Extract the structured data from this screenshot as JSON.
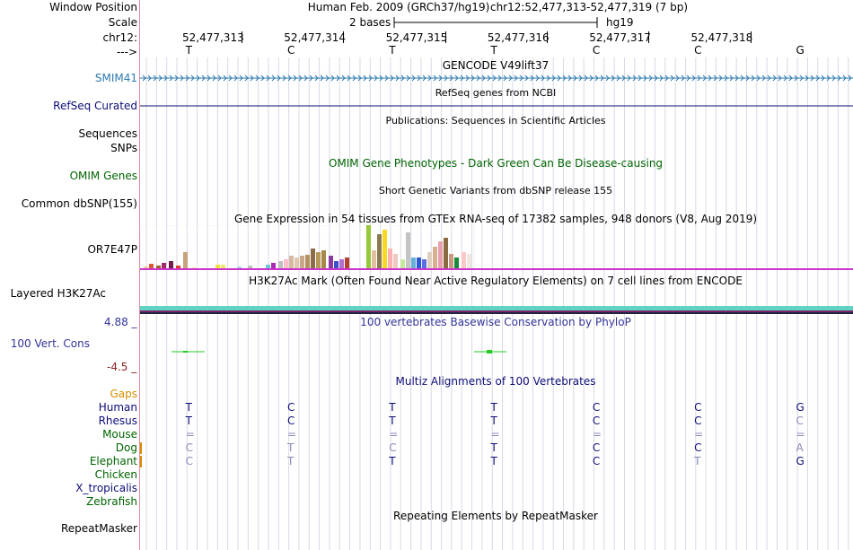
{
  "header": {
    "window_position_label": "Window Position",
    "scale_label": "Scale",
    "chr_label": "chr12:",
    "strand_label": "--->",
    "assembly_text": "Human Feb. 2009 (GRCh37/hg19)",
    "position_text": "chr12:52,477,313-52,477,319 (7 bp)",
    "scale_text": "2 bases",
    "scale_db": "hg19",
    "coords": [
      "52,477,313",
      "52,477,314",
      "52,477,315",
      "52,477,316",
      "52,477,317",
      "52,477,318"
    ],
    "bases": [
      "T",
      "C",
      "T",
      "T",
      "C",
      "C",
      "G"
    ]
  },
  "tracks": {
    "gencode": {
      "title": "GENCODE V49lift37",
      "label": "SMIM41",
      "color": "#2d7bb0"
    },
    "refseq": {
      "title": "RefSeq genes from NCBI",
      "label": "RefSeq Curated",
      "color": "#0c0c78"
    },
    "publications": {
      "title": "Publications: Sequences in Scientific Articles",
      "label1": "Sequences",
      "label2": "SNPs"
    },
    "omim": {
      "title": "OMIM Gene Phenotypes - Dark Green Can Be Disease-causing",
      "label": "OMIM Genes",
      "color": "#006400"
    },
    "dbsnp": {
      "title": "Short Genetic Variants from dbSNP release 155",
      "label": "Common dbSNP(155)"
    },
    "gtex": {
      "title": "Gene Expression in 54 tissues from GTEx RNA-seq of 17382 samples, 948 donors (V8, Aug 2019)",
      "label": "OR7E47P"
    },
    "h3k27ac": {
      "title": "H3K27Ac Mark (Often Found Near Active Regulatory Elements) on 7 cell lines from ENCODE",
      "label": "Layered H3K27Ac"
    },
    "phylop": {
      "title": "100 vertebrates Basewise Conservation by PhyloP",
      "label": "100 Vert. Cons",
      "max": "4.88 _",
      "min": "-4.5 _",
      "color": "#333399",
      "min_color": "#8a2020"
    },
    "multiz": {
      "title": "Multiz Alignments of 100 Vertebrates",
      "gaps_label": "Gaps",
      "gaps_color": "#d98c00"
    },
    "repeatmasker": {
      "title": "Repeating Elements by RepeatMasker",
      "label": "RepeatMasker"
    }
  },
  "species": [
    {
      "name": "Human",
      "color": "#0c0c78",
      "bases": [
        "T",
        "C",
        "T",
        "T",
        "C",
        "C",
        "G"
      ],
      "faint": [
        false,
        false,
        false,
        false,
        false,
        false,
        false
      ]
    },
    {
      "name": "Rhesus",
      "color": "#0c0c78",
      "bases": [
        "T",
        "C",
        "T",
        "T",
        "C",
        "C",
        "C"
      ],
      "faint": [
        false,
        false,
        false,
        false,
        false,
        false,
        true
      ]
    },
    {
      "name": "Mouse",
      "color": "#006400",
      "bases": [
        "=",
        "=",
        "=",
        "=",
        "=",
        "=",
        "="
      ],
      "faint": [
        true,
        true,
        true,
        true,
        true,
        true,
        true
      ]
    },
    {
      "name": "Dog",
      "color": "#006400",
      "bases": [
        "C",
        "T",
        "C",
        "T",
        "C",
        "C",
        "A"
      ],
      "faint": [
        true,
        true,
        true,
        false,
        false,
        false,
        true
      ]
    },
    {
      "name": "Elephant",
      "color": "#006400",
      "bases": [
        "C",
        "T",
        "T",
        "T",
        "C",
        "T",
        "G"
      ],
      "faint": [
        true,
        true,
        false,
        false,
        false,
        true,
        false
      ]
    },
    {
      "name": "Chicken",
      "color": "#006400",
      "bases": [],
      "faint": []
    },
    {
      "name": "X_tropicalis",
      "color": "#0c0c78",
      "bases": [],
      "faint": []
    },
    {
      "name": "Zebrafish",
      "color": "#006400",
      "bases": [],
      "faint": []
    }
  ],
  "colors": {
    "h3k27ac_band": "#5fd3c4",
    "gtex_baseline": "#cc33cc",
    "conservation_green": "#22cc22",
    "faint_base": "#8a8ab8",
    "gridline": "#d9d9e6"
  }
}
